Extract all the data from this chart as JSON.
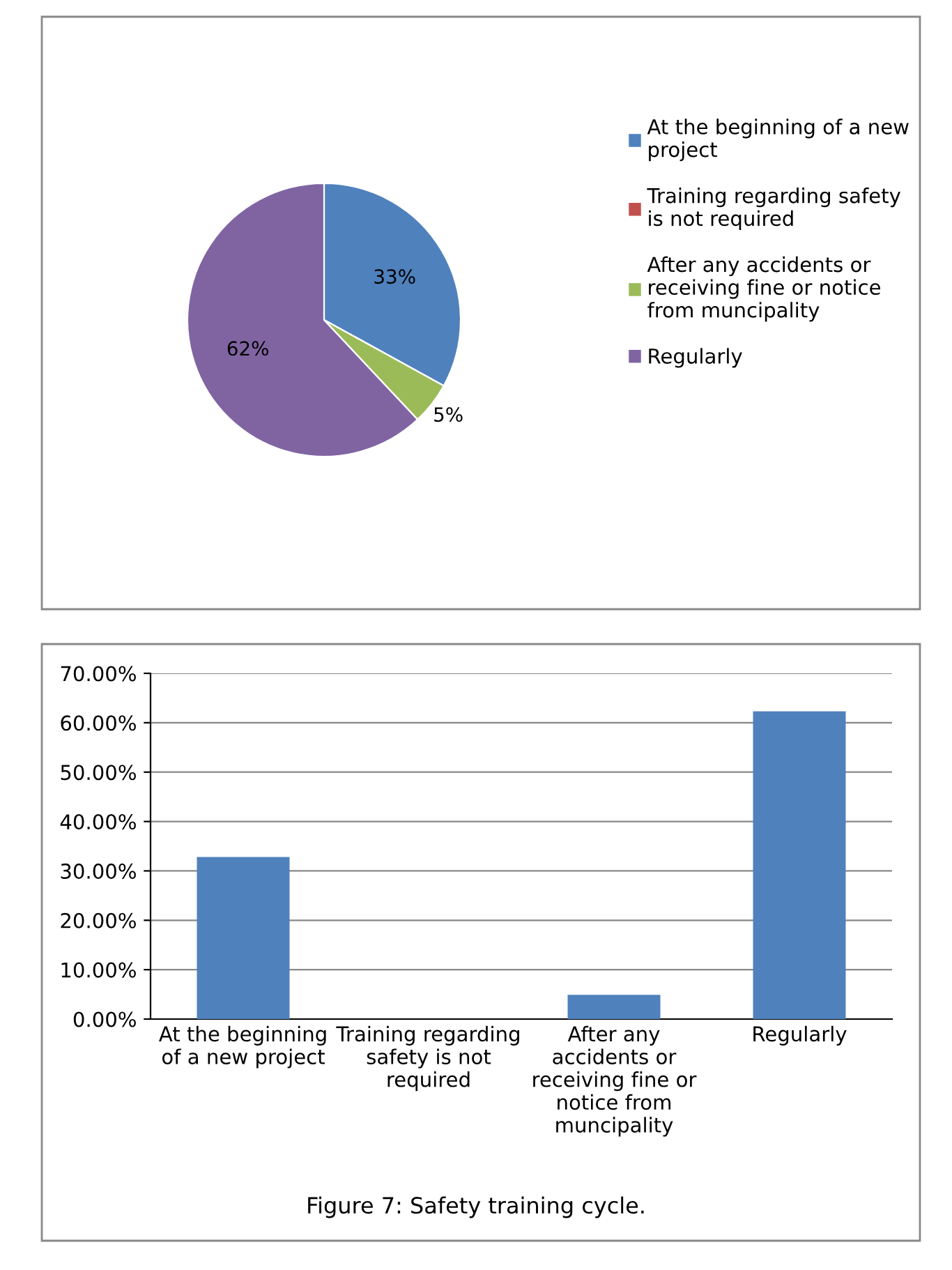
{
  "chart_data": [
    {
      "type": "pie",
      "categories": [
        "At the beginning of a new project",
        "Training regarding safety is not required",
        "After any accidents or receiving fine or notice from muncipality",
        "Regularly"
      ],
      "values": [
        33,
        0,
        5,
        62
      ],
      "colors": [
        "#4f81bd",
        "#c0504d",
        "#9bbb59",
        "#8064a2"
      ],
      "value_labels": [
        "33%",
        null,
        "5%",
        "62%"
      ],
      "legend": "right"
    },
    {
      "type": "bar",
      "categories": [
        "At the beginning of a new project",
        "Training regarding safety is not required",
        "After any accidents or receiving fine or notice from muncipality",
        "Regularly"
      ],
      "series": [
        {
          "color": "#4f81bd",
          "values": [
            32.8,
            0,
            4.9,
            62.3
          ]
        }
      ],
      "ylim": [
        0,
        70
      ],
      "yticks": [
        {
          "value": 0,
          "label": "0.00%"
        },
        {
          "value": 10,
          "label": "10.00%"
        },
        {
          "value": 20,
          "label": "20.00%"
        },
        {
          "value": 30,
          "label": "30.00%"
        },
        {
          "value": 40,
          "label": "40.00%"
        },
        {
          "value": 50,
          "label": "50.00%"
        },
        {
          "value": 60,
          "label": "60.00%"
        },
        {
          "value": 70,
          "label": "70.00%"
        }
      ],
      "grid": "y",
      "legend": false,
      "annotations": [
        "Figure 7: Safety training cycle."
      ]
    }
  ]
}
